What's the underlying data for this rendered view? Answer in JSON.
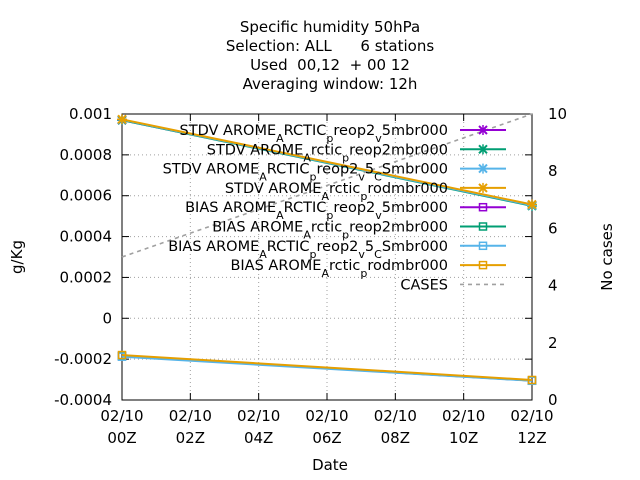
{
  "chart_data": {
    "type": "line",
    "title_lines": [
      "Specific humidity 50hPa",
      "Selection: ALL      6 stations",
      "Used  00,12  + 00 12",
      "Averaging window: 12h"
    ],
    "xlabel": "Date",
    "ylabel": "g/Kg",
    "y2label": "No cases",
    "x_ticks": [
      {
        "x": 0,
        "line1": "02/10",
        "line2": "00Z"
      },
      {
        "x": 2,
        "line1": "02/10",
        "line2": "02Z"
      },
      {
        "x": 4,
        "line1": "02/10",
        "line2": "04Z"
      },
      {
        "x": 6,
        "line1": "02/10",
        "line2": "06Z"
      },
      {
        "x": 8,
        "line1": "02/10",
        "line2": "08Z"
      },
      {
        "x": 10,
        "line1": "02/10",
        "line2": "10Z"
      },
      {
        "x": 12,
        "line1": "02/10",
        "line2": "12Z"
      }
    ],
    "xlim": [
      0,
      12
    ],
    "ylim": [
      -0.0004,
      0.001
    ],
    "y_ticks": [
      {
        "v": 0.001,
        "label": "0.001"
      },
      {
        "v": 0.0008,
        "label": "0.0008"
      },
      {
        "v": 0.0006,
        "label": "0.0006"
      },
      {
        "v": 0.0004,
        "label": "0.0004"
      },
      {
        "v": 0.0002,
        "label": "0.0002"
      },
      {
        "v": 0,
        "label": "0"
      },
      {
        "v": -0.0002,
        "label": "-0.0002"
      },
      {
        "v": -0.0004,
        "label": "-0.0004"
      }
    ],
    "y2lim": [
      0,
      10
    ],
    "y2_ticks": [
      {
        "v": 10,
        "label": "10"
      },
      {
        "v": 8,
        "label": "8"
      },
      {
        "v": 6,
        "label": "6"
      },
      {
        "v": 4,
        "label": "4"
      },
      {
        "v": 2,
        "label": "2"
      },
      {
        "v": 0,
        "label": "0"
      }
    ],
    "grid": "dotted",
    "legend_position": "top-right",
    "series": [
      {
        "name": "STDV AROME_ARCTIC_preop2_v5mbr000",
        "color": "#9400d3",
        "marker": "x",
        "axis": "y1",
        "legend": {
          "base": "STDV AROME",
          "sub1": "A",
          "mid": "RCTIC",
          "sub2": "p",
          "end": "reop2",
          "sub3": "v",
          "tail": "5mbr000"
        },
        "x": [
          0,
          12
        ],
        "y": [
          0.00097,
          0.000555
        ]
      },
      {
        "name": "STDV AROME_Arctic_preop2mbr000",
        "color": "#009e73",
        "marker": "x",
        "axis": "y1",
        "legend": {
          "base": "STDV AROME",
          "sub1": "A",
          "mid": "rctic",
          "sub2": "p",
          "end": "reop2mbr000"
        },
        "x": [
          0,
          12
        ],
        "y": [
          0.00097,
          0.00055
        ]
      },
      {
        "name": "STDV AROME_ARCTIC_preop2_v5_CSmbr000",
        "color": "#56b4e9",
        "marker": "x",
        "axis": "y1",
        "legend": {
          "base": "STDV AROME",
          "sub1": "A",
          "mid": "RCTIC",
          "sub2": "p",
          "end": "reop2",
          "sub3": "v",
          "tail": "5",
          "sub4": "C",
          "tail2": "Smbr000"
        },
        "x": [
          0,
          12
        ],
        "y": [
          0.000972,
          0.000553
        ]
      },
      {
        "name": "STDV AROME_Arctic_prodmbr000",
        "color": "#e69f00",
        "marker": "x",
        "axis": "y1",
        "legend": {
          "base": "STDV AROME",
          "sub1": "A",
          "mid": "rctic",
          "sub2": "p",
          "end": "rodmbr000"
        },
        "x": [
          0,
          12
        ],
        "y": [
          0.000974,
          0.000557
        ]
      },
      {
        "name": "BIAS AROME_ARCTIC_preop2_v5mbr000",
        "color": "#9400d3",
        "marker": "square",
        "axis": "y1",
        "legend": {
          "base": "BIAS AROME",
          "sub1": "A",
          "mid": "RCTIC",
          "sub2": "p",
          "end": "reop2",
          "sub3": "v",
          "tail": "5mbr000"
        },
        "x": [
          0,
          12
        ],
        "y": [
          -0.000185,
          -0.000305
        ]
      },
      {
        "name": "BIAS AROME_Arctic_preop2mbr000",
        "color": "#009e73",
        "marker": "square",
        "axis": "y1",
        "legend": {
          "base": "BIAS AROME",
          "sub1": "A",
          "mid": "rctic",
          "sub2": "p",
          "end": "reop2mbr000"
        },
        "x": [
          0,
          12
        ],
        "y": [
          -0.000185,
          -0.000305
        ]
      },
      {
        "name": "BIAS AROME_ARCTIC_preop2_v5_CSmbr000",
        "color": "#56b4e9",
        "marker": "square",
        "axis": "y1",
        "legend": {
          "base": "BIAS AROME",
          "sub1": "A",
          "mid": "RCTIC",
          "sub2": "p",
          "end": "reop2",
          "sub3": "v",
          "tail": "5",
          "sub4": "C",
          "tail2": "Smbr000"
        },
        "x": [
          0,
          12
        ],
        "y": [
          -0.000188,
          -0.000306
        ]
      },
      {
        "name": "BIAS AROME_Arctic_prodmbr000",
        "color": "#e69f00",
        "marker": "square",
        "axis": "y1",
        "legend": {
          "base": "BIAS AROME",
          "sub1": "A",
          "mid": "rctic",
          "sub2": "p",
          "end": "rodmbr000"
        },
        "x": [
          0,
          12
        ],
        "y": [
          -0.00018,
          -0.000302
        ]
      },
      {
        "name": "CASES",
        "color": "#a0a0a0",
        "marker": "none",
        "dashed": true,
        "axis": "y2",
        "legend": {
          "base": "CASES"
        },
        "x": [
          0,
          12
        ],
        "y": [
          5,
          10
        ]
      }
    ]
  }
}
